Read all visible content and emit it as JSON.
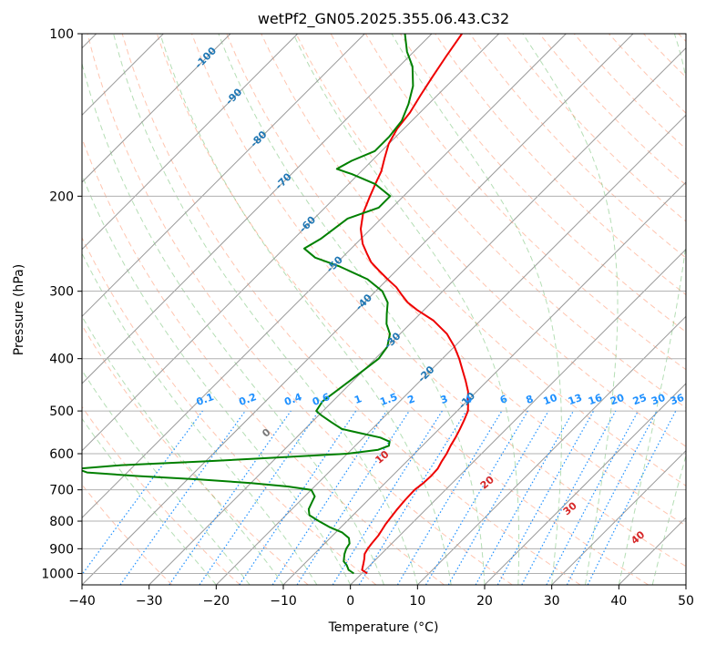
{
  "chart_data": {
    "type": "line",
    "title": "wetPf2_GN05.2025.355.06.43.C32",
    "xlabel": "Temperature (°C)",
    "ylabel": "Pressure (hPa)",
    "xlim": [
      -40,
      50
    ],
    "ylim": [
      1050,
      100
    ],
    "y_scale": "log",
    "grid": true,
    "x_ticks": [
      -40,
      -30,
      -20,
      -10,
      0,
      10,
      20,
      30,
      40,
      50
    ],
    "y_ticks": [
      100,
      200,
      300,
      400,
      500,
      600,
      700,
      800,
      900,
      1000
    ],
    "skew": true,
    "colors": {
      "temperature": "#ee0000",
      "dewpoint": "#008000",
      "isotherm_label": "#1f77b4",
      "mixing_ratio": "#1e90ff",
      "dry_adiabat": "#ff7f50",
      "moist_adiabat": "#2ca02c",
      "moist_adiabat_label": "#d62728"
    },
    "series": [
      {
        "role": "temperature",
        "color": "#ee0000",
        "points": [
          [
            1000,
            0.8
          ],
          [
            985,
            -0.5
          ],
          [
            960,
            -1.2
          ],
          [
            940,
            -1.8
          ],
          [
            920,
            -2.5
          ],
          [
            900,
            -2.8
          ],
          [
            880,
            -3.0
          ],
          [
            850,
            -3.2
          ],
          [
            830,
            -3.5
          ],
          [
            810,
            -3.8
          ],
          [
            790,
            -4.0
          ],
          [
            760,
            -4.3
          ],
          [
            730,
            -4.5
          ],
          [
            700,
            -4.6
          ],
          [
            680,
            -4.3
          ],
          [
            660,
            -4.2
          ],
          [
            640,
            -4.3
          ],
          [
            620,
            -4.8
          ],
          [
            600,
            -5.2
          ],
          [
            580,
            -5.8
          ],
          [
            560,
            -6.3
          ],
          [
            540,
            -6.9
          ],
          [
            520,
            -7.6
          ],
          [
            500,
            -8.4
          ],
          [
            480,
            -9.8
          ],
          [
            460,
            -11.3
          ],
          [
            440,
            -13.2
          ],
          [
            420,
            -15.3
          ],
          [
            400,
            -17.5
          ],
          [
            380,
            -20.0
          ],
          [
            360,
            -23.0
          ],
          [
            340,
            -27.0
          ],
          [
            325,
            -31.0
          ],
          [
            315,
            -33.5
          ],
          [
            305,
            -35.5
          ],
          [
            295,
            -37.5
          ],
          [
            285,
            -40.0
          ],
          [
            275,
            -42.5
          ],
          [
            265,
            -45.0
          ],
          [
            255,
            -47.0
          ],
          [
            245,
            -49.0
          ],
          [
            230,
            -51.5
          ],
          [
            215,
            -53.5
          ],
          [
            200,
            -55.0
          ],
          [
            190,
            -56.0
          ],
          [
            180,
            -57.0
          ],
          [
            170,
            -58.5
          ],
          [
            160,
            -60.0
          ],
          [
            150,
            -61.0
          ],
          [
            140,
            -61.5
          ],
          [
            130,
            -62.5
          ],
          [
            120,
            -63.5
          ],
          [
            110,
            -64.5
          ],
          [
            100,
            -65.5
          ]
        ]
      },
      {
        "role": "dewpoint",
        "color": "#008000",
        "points": [
          [
            1000,
            -1.2
          ],
          [
            985,
            -2.5
          ],
          [
            965,
            -3.5
          ],
          [
            950,
            -4.5
          ],
          [
            935,
            -5.0
          ],
          [
            920,
            -5.5
          ],
          [
            900,
            -6.0
          ],
          [
            880,
            -6.3
          ],
          [
            860,
            -7.2
          ],
          [
            840,
            -9.0
          ],
          [
            820,
            -11.8
          ],
          [
            800,
            -14.2
          ],
          [
            780,
            -16.5
          ],
          [
            760,
            -17.5
          ],
          [
            740,
            -18.0
          ],
          [
            720,
            -18.5
          ],
          [
            700,
            -20.0
          ],
          [
            690,
            -24.0
          ],
          [
            680,
            -30.0
          ],
          [
            670,
            -38.0
          ],
          [
            660,
            -48.0
          ],
          [
            650,
            -56.0
          ],
          [
            640,
            -58.0
          ],
          [
            630,
            -52.0
          ],
          [
            620,
            -40.0
          ],
          [
            610,
            -30.0
          ],
          [
            600,
            -20.0
          ],
          [
            590,
            -16.0
          ],
          [
            580,
            -15.0
          ],
          [
            570,
            -15.5
          ],
          [
            560,
            -17.5
          ],
          [
            550,
            -21.0
          ],
          [
            540,
            -24.5
          ],
          [
            525,
            -27.0
          ],
          [
            510,
            -29.5
          ],
          [
            500,
            -31.0
          ],
          [
            480,
            -31.5
          ],
          [
            460,
            -31.0
          ],
          [
            440,
            -30.5
          ],
          [
            420,
            -30.0
          ],
          [
            400,
            -29.5
          ],
          [
            380,
            -30.0
          ],
          [
            360,
            -31.5
          ],
          [
            345,
            -33.5
          ],
          [
            330,
            -35.0
          ],
          [
            315,
            -36.5
          ],
          [
            300,
            -39.0
          ],
          [
            285,
            -43.0
          ],
          [
            270,
            -49.0
          ],
          [
            260,
            -54.0
          ],
          [
            250,
            -57.0
          ],
          [
            240,
            -56.0
          ],
          [
            230,
            -55.5
          ],
          [
            220,
            -55.0
          ],
          [
            210,
            -52.0
          ],
          [
            200,
            -52.0
          ],
          [
            190,
            -56.0
          ],
          [
            182,
            -61.0
          ],
          [
            178,
            -64.0
          ],
          [
            172,
            -63.0
          ],
          [
            165,
            -61.0
          ],
          [
            155,
            -61.0
          ],
          [
            145,
            -61.5
          ],
          [
            135,
            -63.0
          ],
          [
            125,
            -65.0
          ],
          [
            115,
            -68.0
          ],
          [
            108,
            -71.0
          ],
          [
            100,
            -74.0
          ]
        ]
      }
    ],
    "isotherm_labels": [
      "-100",
      "-90",
      "-80",
      "-70",
      "-60",
      "-50",
      "-40",
      "-30",
      "-20",
      "-10"
    ],
    "mixing_ratio_labels": [
      "0.1",
      "0.2",
      "0.4",
      "0.6",
      "1",
      "1.5",
      "2",
      "3",
      "4",
      "6",
      "8",
      "10",
      "13",
      "16",
      "20",
      "25",
      "30",
      "36"
    ],
    "moist_adiabat_labels": [
      "0",
      "10",
      "20",
      "30",
      "40"
    ]
  }
}
